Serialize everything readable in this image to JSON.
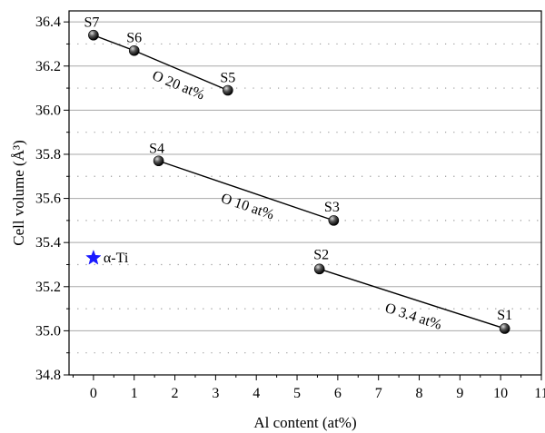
{
  "chart_data": {
    "type": "scatter",
    "xlabel": "Al content (at%)",
    "ylabel": "Cell volume (Å³)",
    "xlim": [
      -0.6,
      11
    ],
    "ylim": [
      34.8,
      36.45
    ],
    "xticks": [
      "0",
      "1",
      "2",
      "3",
      "4",
      "5",
      "6",
      "7",
      "8",
      "9",
      "10",
      "11"
    ],
    "yticks": [
      "34.8",
      "35.0",
      "35.2",
      "35.4",
      "35.6",
      "35.8",
      "36.0",
      "36.2",
      "36.4"
    ],
    "grid": true,
    "series": [
      {
        "name": "O 20 at%",
        "points": [
          {
            "label": "S7",
            "x": 0.0,
            "y": 36.34
          },
          {
            "label": "S6",
            "x": 1.0,
            "y": 36.27
          },
          {
            "label": "S5",
            "x": 3.3,
            "y": 36.09
          }
        ]
      },
      {
        "name": "O 10 at%",
        "points": [
          {
            "label": "S4",
            "x": 1.6,
            "y": 35.77
          },
          {
            "label": "S3",
            "x": 5.9,
            "y": 35.5
          }
        ]
      },
      {
        "name": "O 3.4 at%",
        "points": [
          {
            "label": "S2",
            "x": 5.55,
            "y": 35.28
          },
          {
            "label": "S1",
            "x": 10.1,
            "y": 35.01
          }
        ]
      }
    ],
    "reference": {
      "label": "α-Ti",
      "x": 0.0,
      "y": 35.33,
      "marker": "star",
      "color": "#1a1aff"
    }
  }
}
